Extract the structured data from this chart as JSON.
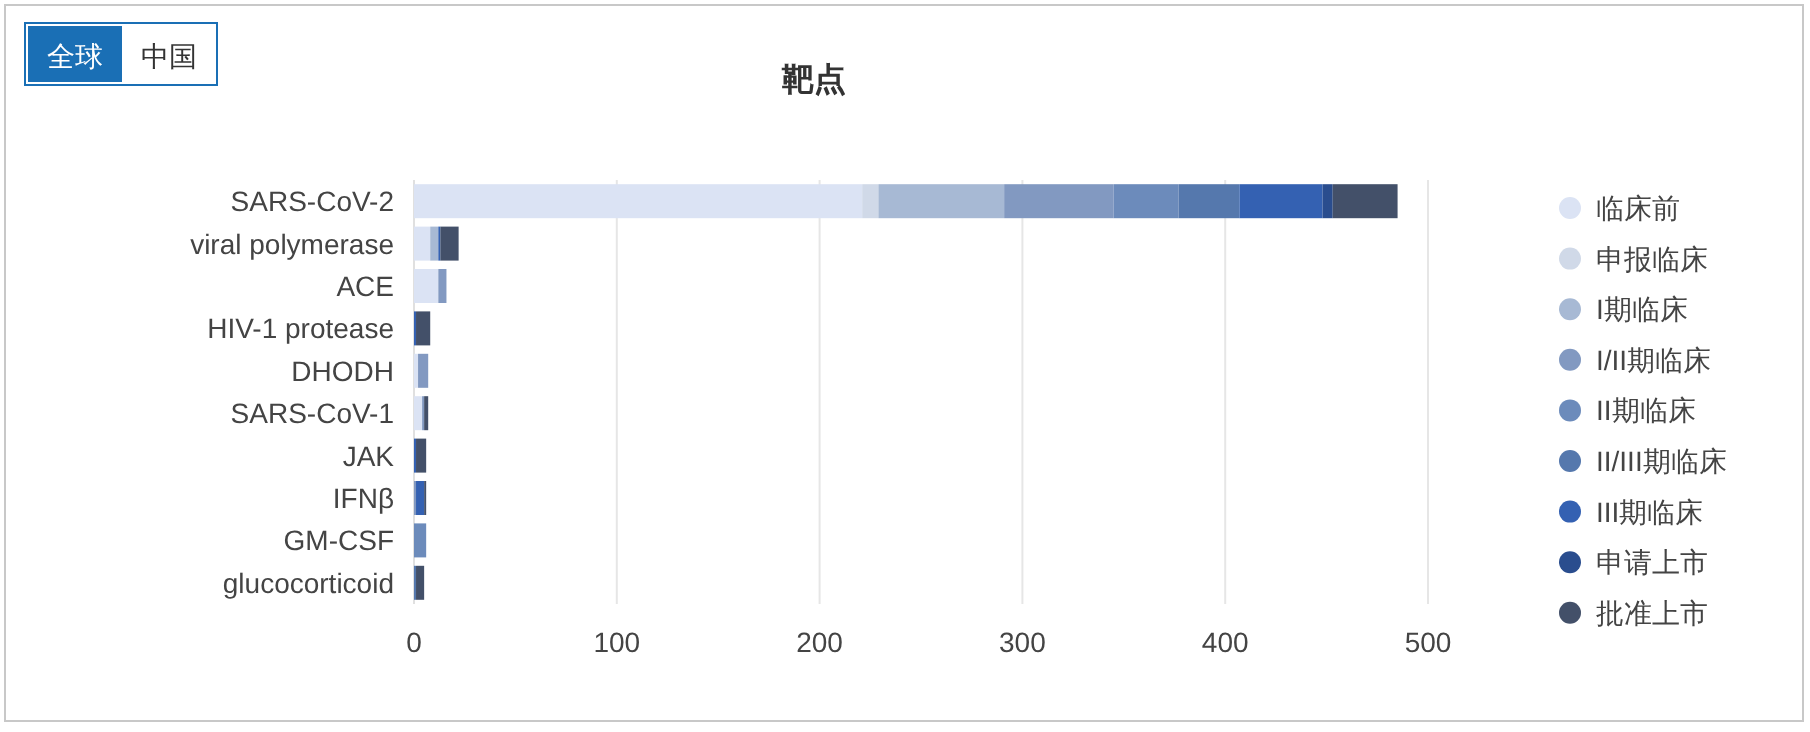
{
  "chart_data": {
    "type": "bar",
    "title": "靶点",
    "orientation": "horizontal",
    "stacked": true,
    "categories": [
      "SARS-CoV-2",
      "viral polymerase",
      "ACE",
      "HIV-1 protease",
      "DHODH",
      "SARS-CoV-1",
      "JAK",
      "IFNβ",
      "GM-CSF",
      "glucocorticoid"
    ],
    "series": [
      {
        "name": "临床前",
        "color": "#dbe3f4",
        "values": [
          221,
          8,
          12,
          0,
          2,
          4,
          0,
          0,
          0,
          0
        ]
      },
      {
        "name": "申报临床",
        "color": "#d0d9e8",
        "values": [
          8,
          0,
          0,
          0,
          0,
          0,
          0,
          0,
          0,
          0
        ]
      },
      {
        "name": "I期临床",
        "color": "#a7b9d4",
        "values": [
          62,
          4,
          0,
          0,
          0,
          0,
          0,
          0,
          0,
          0
        ]
      },
      {
        "name": "I/II期临床",
        "color": "#8299c1",
        "values": [
          54,
          0,
          4,
          0,
          5,
          1,
          0,
          1,
          0,
          0
        ]
      },
      {
        "name": "II期临床",
        "color": "#6c8bbb",
        "values": [
          32,
          0,
          0,
          0,
          0,
          0,
          0,
          0,
          6,
          0
        ]
      },
      {
        "name": "II/III期临床",
        "color": "#5578ad",
        "values": [
          30,
          0,
          0,
          0,
          0,
          0,
          0,
          0,
          0,
          1
        ]
      },
      {
        "name": "III期临床",
        "color": "#3461b2",
        "values": [
          41,
          1,
          0,
          1,
          0,
          0,
          1,
          4,
          0,
          0
        ]
      },
      {
        "name": "申请上市",
        "color": "#2a4d8e",
        "values": [
          5,
          0,
          0,
          0,
          0,
          0,
          0,
          0,
          0,
          0
        ]
      },
      {
        "name": "批准上市",
        "color": "#435069",
        "values": [
          32,
          9,
          0,
          7,
          0,
          2,
          5,
          1,
          0,
          4
        ]
      }
    ],
    "xlim": [
      0,
      500
    ],
    "xticks": [
      0,
      100,
      200,
      300,
      400,
      500
    ],
    "grid": "x",
    "legend": "right",
    "annotations": [
      "全球",
      "中国"
    ]
  }
}
